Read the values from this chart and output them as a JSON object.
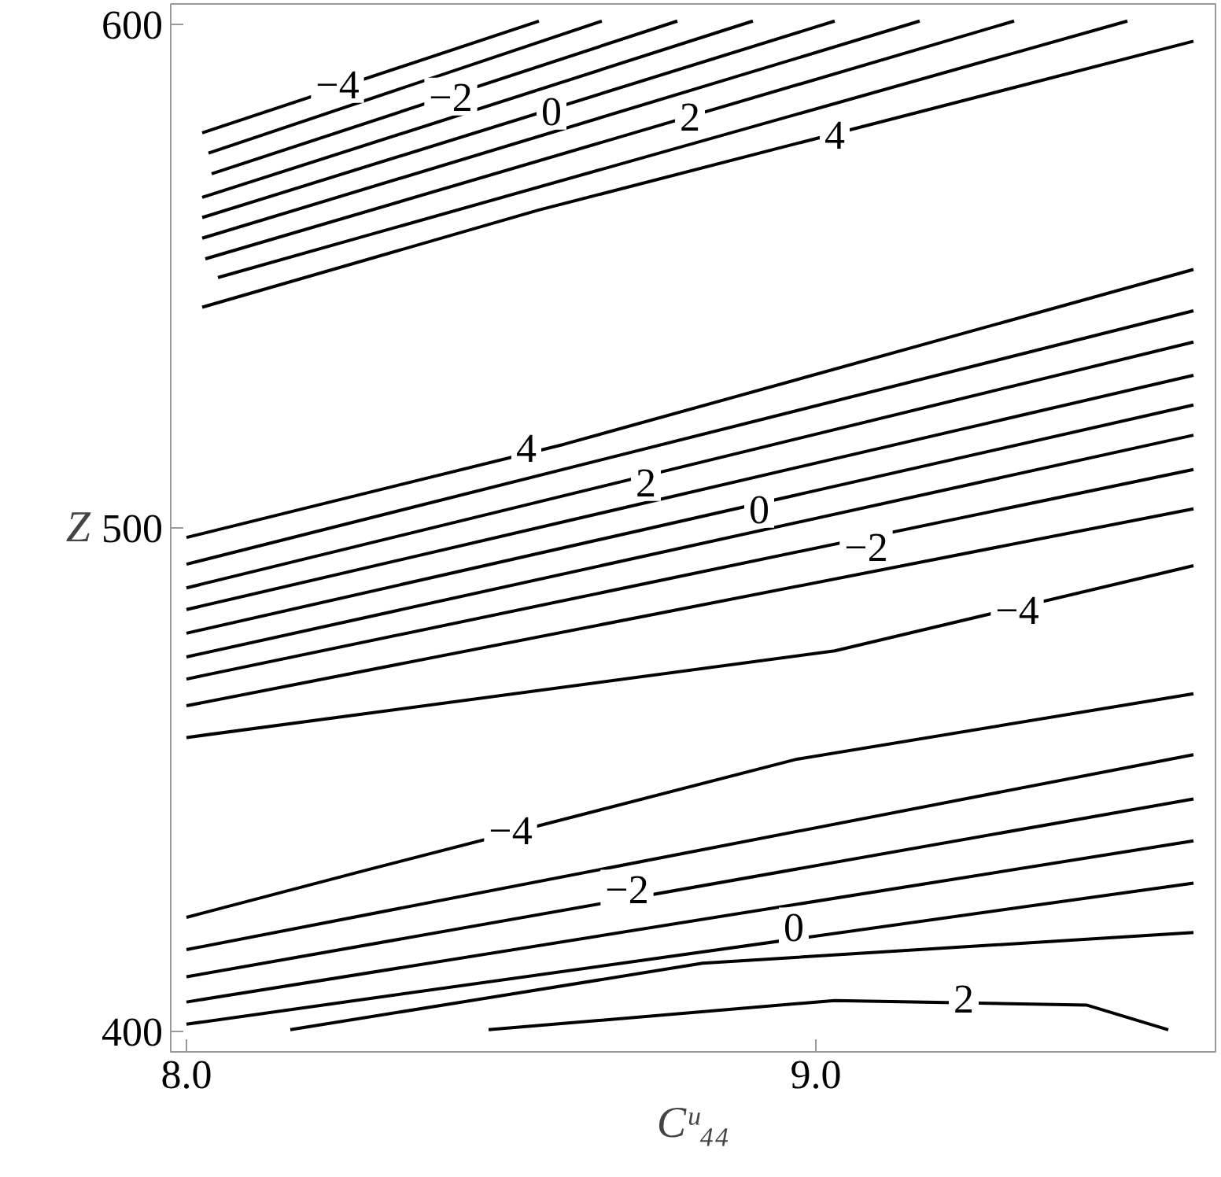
{
  "chart_data": {
    "type": "line",
    "xlabel": "Cᵘ₄₄",
    "ylabel": "Z",
    "xlim": [
      7.975,
      9.635
    ],
    "ylim": [
      396,
      604
    ],
    "xticks": [
      {
        "value": 8.0,
        "label": "8.0"
      },
      {
        "value": 9.0,
        "label": "9.0"
      }
    ],
    "yticks": [
      400,
      500,
      600
    ],
    "grid": false,
    "marker": "none",
    "line_style": "solid",
    "series": [
      {
        "color": "#000000",
        "x": [
          8.025,
          8.56
        ],
        "values": [
          578.4,
          600.6
        ]
      },
      {
        "color": "#000000",
        "x": [
          8.035,
          8.66
        ],
        "values": [
          574.4,
          600.6
        ]
      },
      {
        "color": "#000000",
        "x": [
          8.04,
          8.78
        ],
        "values": [
          570.3,
          600.6
        ]
      },
      {
        "color": "#000000",
        "x": [
          8.025,
          8.9
        ],
        "values": [
          565.6,
          600.6
        ]
      },
      {
        "color": "#000000",
        "x": [
          8.025,
          9.03
        ],
        "values": [
          561.6,
          600.6
        ]
      },
      {
        "color": "#000000",
        "x": [
          8.025,
          9.165
        ],
        "values": [
          557.5,
          600.6
        ]
      },
      {
        "color": "#000000",
        "x": [
          8.03,
          9.315
        ],
        "values": [
          553.4,
          600.6
        ]
      },
      {
        "color": "#000000",
        "x": [
          8.05,
          9.495
        ],
        "values": [
          549.7,
          600.6
        ]
      },
      {
        "color": "#000000",
        "x": [
          8.025,
          8.56,
          9.6
        ],
        "values": [
          543.8,
          563.1,
          596.6
        ]
      },
      {
        "color": "#000000",
        "x": [
          8.0,
          8.6,
          9.6
        ],
        "values": [
          498.1,
          516.6,
          551.3
        ]
      },
      {
        "color": "#000000",
        "x": [
          8.0,
          9.6
        ],
        "values": [
          492.8,
          543.1
        ]
      },
      {
        "color": "#000000",
        "x": [
          8.0,
          9.6
        ],
        "values": [
          488.1,
          536.9
        ]
      },
      {
        "color": "#000000",
        "x": [
          8.0,
          9.6
        ],
        "values": [
          483.8,
          530.3
        ]
      },
      {
        "color": "#000000",
        "x": [
          8.0,
          9.6
        ],
        "values": [
          479.1,
          524.4
        ]
      },
      {
        "color": "#000000",
        "x": [
          8.0,
          9.6
        ],
        "values": [
          474.4,
          518.4
        ]
      },
      {
        "color": "#000000",
        "x": [
          8.0,
          9.6
        ],
        "values": [
          470.0,
          511.6
        ]
      },
      {
        "color": "#000000",
        "x": [
          8.0,
          9.6
        ],
        "values": [
          464.7,
          503.8
        ]
      },
      {
        "color": "#000000",
        "x": [
          8.0,
          9.03,
          9.6
        ],
        "values": [
          458.4,
          475.6,
          492.5
        ]
      },
      {
        "color": "#000000",
        "x": [
          8.0,
          8.28,
          8.97,
          9.6
        ],
        "values": [
          422.7,
          431.9,
          454.1,
          467.1
        ]
      },
      {
        "color": "#000000",
        "x": [
          8.0,
          9.6
        ],
        "values": [
          416.3,
          455.0
        ]
      },
      {
        "color": "#000000",
        "x": [
          8.0,
          9.6
        ],
        "values": [
          410.9,
          446.2
        ]
      },
      {
        "color": "#000000",
        "x": [
          8.0,
          9.6
        ],
        "values": [
          405.9,
          437.9
        ]
      },
      {
        "color": "#000000",
        "x": [
          8.0,
          9.6
        ],
        "values": [
          401.5,
          429.5
        ]
      },
      {
        "color": "#000000",
        "x": [
          8.165,
          8.82,
          9.6
        ],
        "values": [
          400.4,
          413.6,
          419.7
        ]
      },
      {
        "color": "#000000",
        "x": [
          8.48,
          9.03,
          9.43,
          9.56
        ],
        "values": [
          400.4,
          406.2,
          405.3,
          400.4
        ]
      }
    ],
    "annotations": [
      {
        "text": "−4",
        "x": 8.24,
        "y": 588.1
      },
      {
        "text": "−2",
        "x": 8.42,
        "y": 585.6
      },
      {
        "text": "0",
        "x": 8.58,
        "y": 582.8
      },
      {
        "text": "2",
        "x": 8.8,
        "y": 581.6
      },
      {
        "text": "4",
        "x": 9.03,
        "y": 578.1
      },
      {
        "text": "4",
        "x": 8.54,
        "y": 515.9
      },
      {
        "text": "2",
        "x": 8.73,
        "y": 509.1
      },
      {
        "text": "0",
        "x": 8.91,
        "y": 503.8
      },
      {
        "text": "−2",
        "x": 9.08,
        "y": 496.3
      },
      {
        "text": "−4",
        "x": 9.32,
        "y": 483.8
      },
      {
        "text": "−4",
        "x": 8.515,
        "y": 440.0
      },
      {
        "text": "−2",
        "x": 8.7,
        "y": 428.4
      },
      {
        "text": "0",
        "x": 8.965,
        "y": 420.9
      },
      {
        "text": "2",
        "x": 9.235,
        "y": 406.6
      }
    ]
  }
}
